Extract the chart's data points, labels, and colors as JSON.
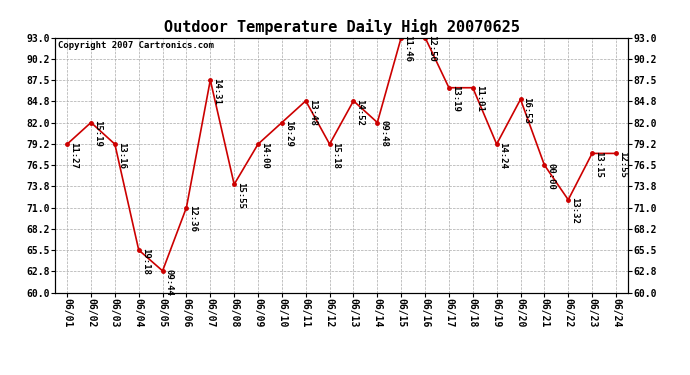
{
  "title": "Outdoor Temperature Daily High 20070625",
  "copyright": "Copyright 2007 Cartronics.com",
  "dates": [
    "06/01",
    "06/02",
    "06/03",
    "06/04",
    "06/05",
    "06/06",
    "06/07",
    "06/08",
    "06/09",
    "06/10",
    "06/11",
    "06/12",
    "06/13",
    "06/14",
    "06/15",
    "06/16",
    "06/17",
    "06/18",
    "06/19",
    "06/20",
    "06/21",
    "06/22",
    "06/23",
    "06/24"
  ],
  "temps": [
    79.2,
    82.0,
    79.2,
    65.5,
    62.8,
    71.0,
    87.5,
    74.0,
    79.2,
    82.0,
    84.8,
    79.2,
    84.8,
    82.0,
    93.0,
    93.0,
    86.5,
    86.5,
    79.2,
    85.0,
    76.5,
    72.0,
    78.0,
    78.0
  ],
  "times": [
    "11:27",
    "15:19",
    "13:16",
    "19:18",
    "09:44",
    "12:36",
    "14:31",
    "15:55",
    "14:00",
    "16:29",
    "13:48",
    "15:18",
    "14:52",
    "09:48",
    "11:46",
    "12:50",
    "13:19",
    "11:01",
    "14:24",
    "16:53",
    "00:00",
    "13:32",
    "13:15",
    "12:55"
  ],
  "ylim": [
    60.0,
    93.0
  ],
  "yticks": [
    60.0,
    62.8,
    65.5,
    68.2,
    71.0,
    73.8,
    76.5,
    79.2,
    82.0,
    84.8,
    87.5,
    90.2,
    93.0
  ],
  "line_color": "#cc0000",
  "marker_color": "#cc0000",
  "bg_color": "#ffffff",
  "plot_bg_color": "#ffffff",
  "grid_color": "#aaaaaa",
  "title_fontsize": 11,
  "label_fontsize": 6.5,
  "tick_fontsize": 7,
  "copyright_fontsize": 6.5
}
